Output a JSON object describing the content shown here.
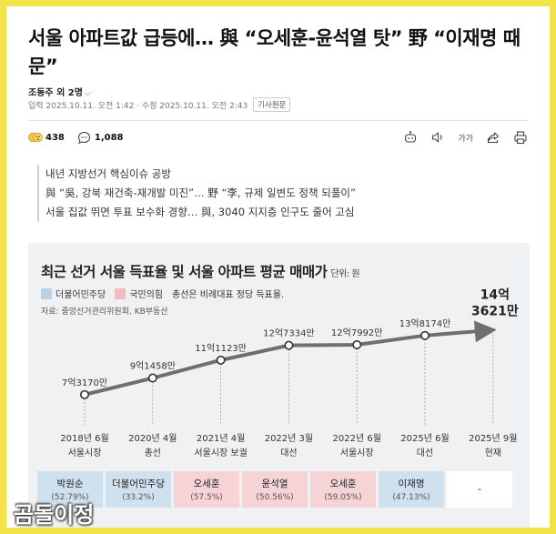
{
  "article": {
    "headline": "서울 아파트값 급등에… 與 “오세훈-윤석열 탓” 野 “이재명 때문”",
    "author": "조동주 외 2명",
    "dates": "입력 2025.10.11. 오전 1:42 · 수정 2025.10.11. 오전 2:43",
    "original_button": "기사원문"
  },
  "toolbar": {
    "reaction_count": "438",
    "comment_count": "1,088",
    "font_size_label": "가가"
  },
  "summary": [
    "내년 지방선거 핵심이슈 공방",
    "與 “吳, 강북 재건축-재개발 미진”… 野 “李, 규제 일변도 정책 되풀이”",
    "서울 집값 뛰면 투표 보수화 경향… 與, 3040 지지층 인구도 줄어 고심"
  ],
  "graphic": {
    "title": "최근 선거 서울 득표율 및 서울 아파트 평균 매매가",
    "unit": "단위: 원",
    "legend": [
      {
        "label": "더불어민주당",
        "color": "#b9d1e6"
      },
      {
        "label": "국민의힘",
        "color": "#f0bcc2"
      }
    ],
    "legend_note": "총선은 비례대표 정당 득표율.",
    "source": "자료: 중앙선거관리위원회, KB부동산"
  },
  "chart_data": {
    "type": "line",
    "title": "최근 선거 서울 득표율 및 서울 아파트 평균 매매가",
    "unit": "단위: 원",
    "categories": [
      {
        "date": "2018년 6월",
        "event": "서울시장"
      },
      {
        "date": "2020년 4월",
        "event": "총선"
      },
      {
        "date": "2021년 4월",
        "event": "서울시장 보궐"
      },
      {
        "date": "2022년 3월",
        "event": "대선"
      },
      {
        "date": "2022년 6월",
        "event": "서울시장"
      },
      {
        "date": "2025년 6월",
        "event": "대선"
      },
      {
        "date": "2025년 9월",
        "event": "현재"
      }
    ],
    "values": [
      731700000,
      914580000,
      1111230000,
      1273340000,
      1279920000,
      1381740000,
      1436210000
    ],
    "value_labels": [
      "7억3170만",
      "9억1458만",
      "11억1123만",
      "12억7334만",
      "12억7992만",
      "13억8174만",
      "14억\n3621만"
    ],
    "ylim": [
      0,
      1500000000
    ],
    "winners": [
      {
        "name": "박원순",
        "pct": "(52.79%)",
        "party": "blue"
      },
      {
        "name": "더불어민주당",
        "pct": "(33.2%)",
        "party": "blue"
      },
      {
        "name": "오세훈",
        "pct": "(57.5%)",
        "party": "pink"
      },
      {
        "name": "윤석열",
        "pct": "(50.56%)",
        "party": "pink"
      },
      {
        "name": "오세훈",
        "pct": "(59.05%)",
        "party": "pink"
      },
      {
        "name": "이재명",
        "pct": "(47.13%)",
        "party": "blue"
      },
      {
        "name": "-",
        "pct": "",
        "party": "white"
      }
    ],
    "colors": {
      "line": "#6f6f6f",
      "highlight": "#333333",
      "blue": "#cfe0ef",
      "pink": "#f5d3d6"
    }
  },
  "watermark": "곰돌이정"
}
